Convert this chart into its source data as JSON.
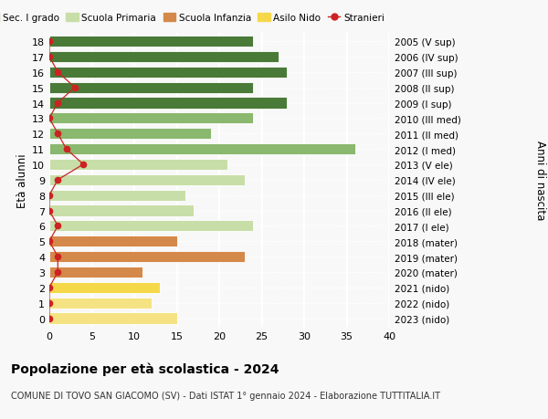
{
  "ages": [
    0,
    1,
    2,
    3,
    4,
    5,
    6,
    7,
    8,
    9,
    10,
    11,
    12,
    13,
    14,
    15,
    16,
    17,
    18
  ],
  "birth_years": [
    "2023 (nido)",
    "2022 (nido)",
    "2021 (nido)",
    "2020 (mater)",
    "2019 (mater)",
    "2018 (mater)",
    "2017 (I ele)",
    "2016 (II ele)",
    "2015 (III ele)",
    "2014 (IV ele)",
    "2013 (V ele)",
    "2012 (I med)",
    "2011 (II med)",
    "2010 (III med)",
    "2009 (I sup)",
    "2008 (II sup)",
    "2007 (III sup)",
    "2006 (IV sup)",
    "2005 (V sup)"
  ],
  "bar_values": [
    15,
    12,
    13,
    11,
    23,
    15,
    24,
    17,
    16,
    23,
    21,
    36,
    19,
    24,
    28,
    24,
    28,
    27,
    24
  ],
  "bar_colors": [
    "#f5e383",
    "#f5e383",
    "#f5d84a",
    "#d4894a",
    "#d4894a",
    "#d4894a",
    "#c8dea8",
    "#c8dea8",
    "#c8dea8",
    "#c8dea8",
    "#c8dea8",
    "#8ab86e",
    "#8ab86e",
    "#8ab86e",
    "#4a7a38",
    "#4a7a38",
    "#4a7a38",
    "#4a7a38",
    "#4a7a38"
  ],
  "stranieri_values": [
    0,
    0,
    0,
    1,
    1,
    0,
    1,
    0,
    0,
    1,
    4,
    2,
    1,
    0,
    1,
    3,
    1,
    0,
    0
  ],
  "title": "Popolazione per età scolastica - 2024",
  "subtitle": "COMUNE DI TOVO SAN GIACOMO (SV) - Dati ISTAT 1° gennaio 2024 - Elaborazione TUTTITALIA.IT",
  "ylabel_left": "Età alunni",
  "ylabel_right": "Anni di nascita",
  "legend_labels": [
    "Sec. II grado",
    "Sec. I grado",
    "Scuola Primaria",
    "Scuola Infanzia",
    "Asilo Nido",
    "Stranieri"
  ],
  "legend_colors": [
    "#4a7a38",
    "#8ab86e",
    "#c8dea8",
    "#d4894a",
    "#f5d84a",
    "#cc2222"
  ],
  "color_stranieri": "#cc2222",
  "xlim": [
    0,
    40
  ],
  "ylim_min": -0.55,
  "ylim_max": 18.55,
  "bar_height": 0.72,
  "figsize": [
    6.0,
    4.6
  ],
  "dpi": 100,
  "bg_color": "#f8f8f8",
  "grid_color": "#ffffff",
  "xticks": [
    0,
    5,
    10,
    15,
    20,
    25,
    30,
    35,
    40
  ]
}
